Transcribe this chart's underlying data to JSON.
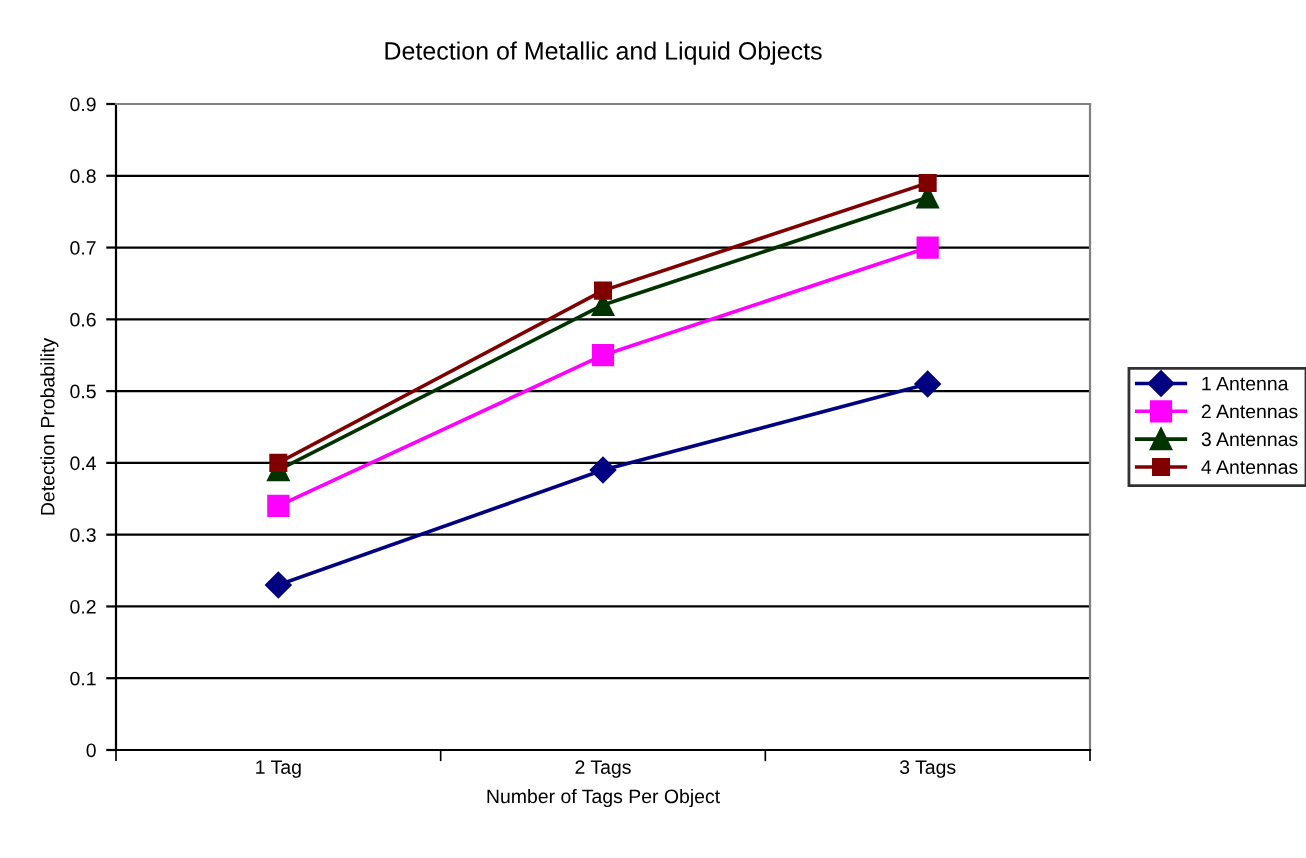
{
  "chart_data": {
    "type": "line",
    "title": "Detection of Metallic and Liquid Objects",
    "xlabel": "Number of Tags Per Object",
    "ylabel": "Detection Probability",
    "categories": [
      "1 Tag",
      "2 Tags",
      "3 Tags"
    ],
    "series": [
      {
        "name": "1 Antenna",
        "color": "#000080",
        "marker": "diamond",
        "values": [
          0.23,
          0.39,
          0.51
        ]
      },
      {
        "name": "2 Antennas",
        "color": "#ff00ff",
        "marker": "square",
        "values": [
          0.34,
          0.55,
          0.7
        ]
      },
      {
        "name": "3 Antennas",
        "color": "#003300",
        "marker": "triangle",
        "values": [
          0.39,
          0.62,
          0.77
        ]
      },
      {
        "name": "4 Antennas",
        "color": "#800000",
        "marker": "square",
        "values": [
          0.4,
          0.64,
          0.79
        ]
      }
    ],
    "ylim": [
      0,
      0.9
    ],
    "yticks": [
      0,
      0.1,
      0.2,
      0.3,
      0.4,
      0.5,
      0.6,
      0.7,
      0.8,
      0.9
    ],
    "grid": "y",
    "legend": "right"
  }
}
